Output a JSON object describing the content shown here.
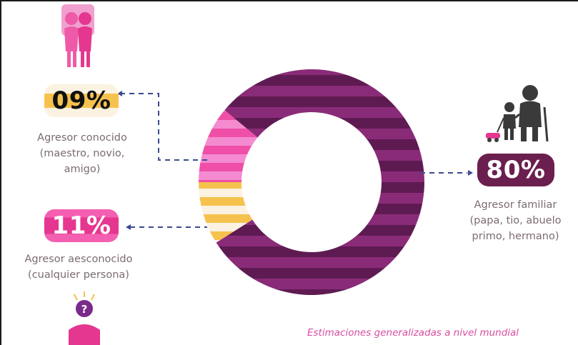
{
  "chart_data": {
    "type": "pie",
    "style": "donut",
    "slices": [
      {
        "label": "Agresor familiar",
        "detail": "(papa, tio, abuelo primo, hermano)",
        "value": 80,
        "display": "80%",
        "color": "#8a2b78"
      },
      {
        "label": "Agresor conocido",
        "detail": "(maestro, novio, amigo)",
        "value": 9,
        "display": "09%",
        "color": "#f6c24e"
      },
      {
        "label": "Agresor aesconocido",
        "detail": "(cualquier persona)",
        "value": 11,
        "display": "11%",
        "color": "#ef4fa6"
      }
    ]
  },
  "badges": {
    "known": "09%",
    "unknown": "11%",
    "family": "80%"
  },
  "captions": {
    "known": [
      "Agresor conocido",
      "(maestro, novio,",
      "amigo)"
    ],
    "unknown": [
      "Agresor aesconocido",
      "(cualquier persona)"
    ],
    "family": [
      "Agresor familiar",
      "(papa, tio, abuelo",
      "primo, hermano)"
    ]
  },
  "footnote": "Estimaciones generalizadas a nivel mundial",
  "icons": {
    "known": "couple-icon",
    "unknown": "question-person-icon",
    "family": "grandparent-child-icon"
  },
  "colors": {
    "family": "#6b1f4e",
    "known": "#f6c24e",
    "unknown": "#e5378f",
    "text": "#7b6b74",
    "footnote": "#d64ca0"
  }
}
